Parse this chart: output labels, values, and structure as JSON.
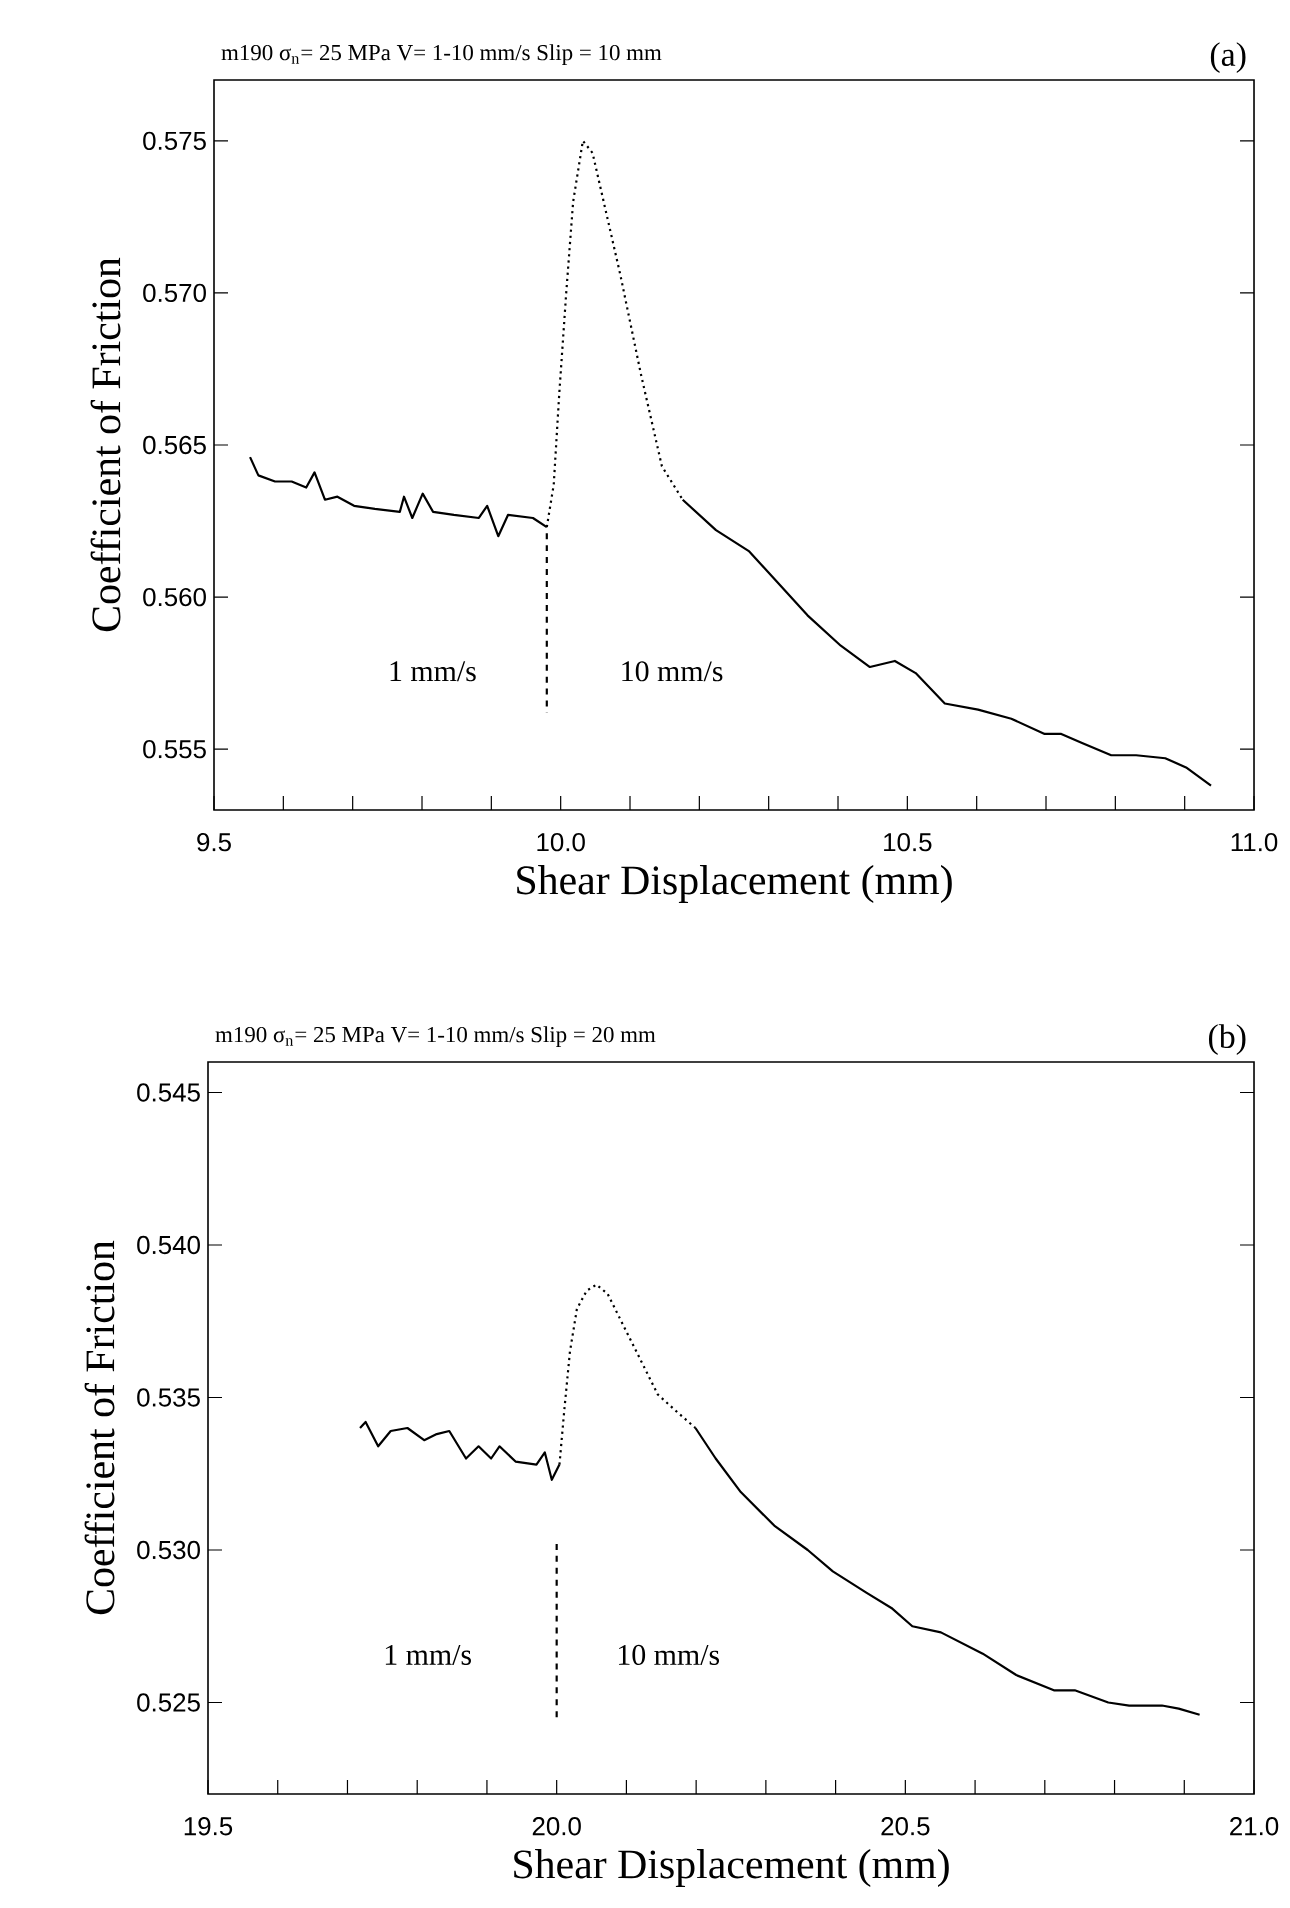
{
  "chart_data": [
    {
      "type": "line",
      "title": "m190  σ$_{n}$= 25 MPa   V= 1-10 mm/s   Slip = 10 mm",
      "xlabel": "Shear Displacement (mm)",
      "ylabel": "Coefficient of Friction",
      "annotations": [
        "(a)",
        "1 mm/s",
        "10 mm/s"
      ],
      "xlim": [
        9.5,
        11.0
      ],
      "ylim": [
        0.553,
        0.577
      ],
      "xticks": [
        9.5,
        {
          "value": 9.6,
          "label": null
        },
        {
          "value": 9.7,
          "label": null
        },
        {
          "value": 9.8,
          "label": null
        },
        {
          "value": 9.9,
          "label": null
        },
        {
          "value": 10.0,
          "label": "10.0"
        },
        {
          "value": 10.1,
          "label": null
        },
        {
          "value": 10.2,
          "label": null
        },
        {
          "value": 10.3,
          "label": null
        },
        {
          "value": 10.4,
          "label": null
        },
        10.5,
        {
          "value": 10.6,
          "label": null
        },
        {
          "value": 10.7,
          "label": null
        },
        {
          "value": 10.8,
          "label": null
        },
        {
          "value": 10.9,
          "label": null
        },
        {
          "value": 11.0,
          "label": "11.0"
        }
      ],
      "yticks": [
        {
          "value": 0.555,
          "label": "0.555"
        },
        {
          "value": 0.56,
          "label": "0.560"
        },
        0.565,
        {
          "value": 0.57,
          "label": "0.570"
        },
        0.575
      ],
      "series": [
        {
          "type": "line",
          "color": "#000000",
          "line_style": "solid",
          "x": [
            9.552,
            9.564,
            9.588,
            9.612,
            9.633,
            9.645,
            9.66,
            9.678,
            9.702,
            9.732,
            9.768,
            9.774,
            9.786,
            9.801,
            9.816,
            9.846,
            9.882,
            9.894,
            9.91,
            9.924,
            9.96,
            9.98
          ],
          "values": [
            0.5646,
            0.564,
            0.5638,
            0.5638,
            0.5636,
            0.5641,
            0.5632,
            0.5633,
            0.563,
            0.5629,
            0.5628,
            0.5633,
            0.5626,
            0.5634,
            0.5628,
            0.5627,
            0.5626,
            0.563,
            0.562,
            0.5627,
            0.5626,
            0.5623
          ]
        },
        {
          "type": "line",
          "color": "#000000",
          "line_style": "dotted",
          "x": [
            9.98,
            9.99,
            9.998,
            10.008,
            10.018,
            10.032,
            10.046,
            10.062,
            10.086,
            10.116,
            10.146,
            10.176
          ],
          "values": [
            0.5623,
            0.5637,
            0.5667,
            0.57,
            0.573,
            0.575,
            0.5746,
            0.573,
            0.5706,
            0.5673,
            0.5643,
            0.5632
          ]
        },
        {
          "type": "line",
          "color": "#000000",
          "line_style": "solid",
          "x": [
            10.176,
            10.224,
            10.272,
            10.308,
            10.356,
            10.404,
            10.446,
            10.482,
            10.512,
            10.554,
            10.602,
            10.65,
            10.698,
            10.722,
            10.752,
            10.794,
            10.83,
            10.872,
            10.902,
            10.938
          ],
          "values": [
            0.5632,
            0.5622,
            0.5615,
            0.5606,
            0.5594,
            0.5584,
            0.5577,
            0.5579,
            0.5575,
            0.5565,
            0.5563,
            0.556,
            0.5555,
            0.5555,
            0.5552,
            0.5548,
            0.5548,
            0.5547,
            0.5544,
            0.5538
          ]
        },
        {
          "type": "line",
          "color": "#000000",
          "line_style": "dashed",
          "x": [
            9.98,
            9.98
          ],
          "values": [
            0.5621,
            0.5562
          ]
        }
      ]
    },
    {
      "type": "line",
      "title": "m190  σ$_{n}$= 25 MPa   V= 1-10 mm/s   Slip = 20 mm",
      "xlabel": "Shear Displacement (mm)",
      "ylabel": "Coefficient of Friction",
      "annotations": [
        "(b)",
        "1 mm/s",
        "10 mm/s"
      ],
      "xlim": [
        19.5,
        21.0
      ],
      "ylim": [
        0.522,
        0.546
      ],
      "xticks": [
        19.5,
        {
          "value": 19.6,
          "label": null
        },
        {
          "value": 19.7,
          "label": null
        },
        {
          "value": 19.8,
          "label": null
        },
        {
          "value": 19.9,
          "label": null
        },
        {
          "value": 20.0,
          "label": "20.0"
        },
        {
          "value": 20.1,
          "label": null
        },
        {
          "value": 20.2,
          "label": null
        },
        {
          "value": 20.3,
          "label": null
        },
        {
          "value": 20.4,
          "label": null
        },
        20.5,
        {
          "value": 20.6,
          "label": null
        },
        {
          "value": 20.7,
          "label": null
        },
        {
          "value": 20.8,
          "label": null
        },
        {
          "value": 20.9,
          "label": null
        },
        {
          "value": 21.0,
          "label": "21.0"
        }
      ],
      "yticks": [
        0.525,
        {
          "value": 0.53,
          "label": "0.530"
        },
        0.535,
        {
          "value": 0.54,
          "label": "0.540"
        },
        0.545
      ],
      "series": [
        {
          "type": "line",
          "color": "#000000",
          "line_style": "solid",
          "x": [
            19.718,
            19.726,
            19.744,
            19.762,
            19.786,
            19.81,
            19.828,
            19.846,
            19.87,
            19.888,
            19.906,
            19.918,
            19.941,
            19.971,
            19.983,
            19.993,
            20.004
          ],
          "values": [
            0.534,
            0.5342,
            0.5334,
            0.5339,
            0.534,
            0.5336,
            0.5338,
            0.5339,
            0.533,
            0.5334,
            0.533,
            0.5334,
            0.5329,
            0.5328,
            0.5332,
            0.5323,
            0.5328
          ]
        },
        {
          "type": "line",
          "color": "#000000",
          "line_style": "dotted",
          "x": [
            20.004,
            20.011,
            20.019,
            20.029,
            20.043,
            20.057,
            20.073,
            20.097,
            20.121,
            20.145,
            20.169,
            20.199
          ],
          "values": [
            0.5328,
            0.5346,
            0.5365,
            0.5379,
            0.5385,
            0.5387,
            0.5384,
            0.5373,
            0.5362,
            0.5351,
            0.5346,
            0.534
          ]
        },
        {
          "type": "line",
          "color": "#000000",
          "line_style": "solid",
          "x": [
            20.199,
            20.228,
            20.264,
            20.312,
            20.36,
            20.396,
            20.444,
            20.48,
            20.51,
            20.551,
            20.611,
            20.659,
            20.713,
            20.743,
            20.791,
            20.821,
            20.868,
            20.892,
            20.922
          ],
          "values": [
            0.534,
            0.533,
            0.5319,
            0.5308,
            0.53,
            0.5293,
            0.5286,
            0.5281,
            0.5275,
            0.5273,
            0.5266,
            0.5259,
            0.5254,
            0.5254,
            0.525,
            0.5249,
            0.5249,
            0.5248,
            0.5246
          ]
        },
        {
          "type": "line",
          "color": "#000000",
          "line_style": "dashed",
          "x": [
            20.0,
            20.0
          ],
          "values": [
            0.5302,
            0.5245
          ]
        }
      ]
    }
  ]
}
